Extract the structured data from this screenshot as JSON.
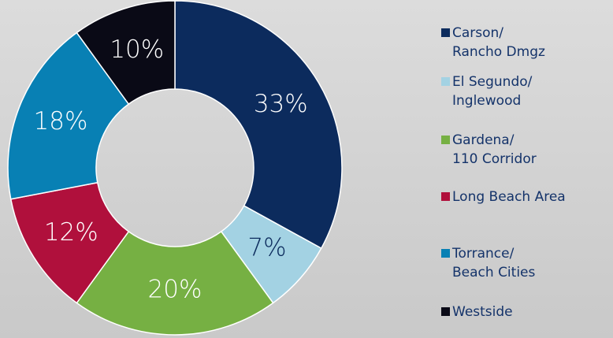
{
  "chart_data": {
    "type": "donut",
    "categories": [
      "Carson/\nRancho Dmgz",
      "El Segundo/\nInglewood",
      "Gardena/\n110 Corridor",
      "Long Beach Area",
      "Torrance/\nBeach Cities",
      "Westside"
    ],
    "values": [
      33,
      7,
      20,
      12,
      18,
      10
    ],
    "value_labels": [
      "33%",
      "7%",
      "20%",
      "12%",
      "18%",
      "10%"
    ],
    "colors": [
      "#0c2b5d",
      "#a3d2e3",
      "#76b043",
      "#b0103c",
      "#0880b4",
      "#0a0a16"
    ],
    "legend": "right"
  }
}
